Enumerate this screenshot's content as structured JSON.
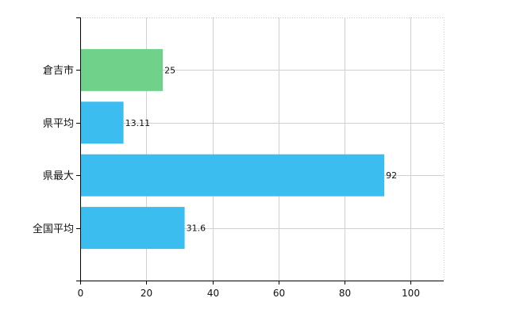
{
  "chart_data": {
    "type": "bar",
    "orientation": "horizontal",
    "categories": [
      "倉吉市",
      "県平均",
      "県最大",
      "全国平均"
    ],
    "values": [
      25,
      13.11,
      92,
      31.6
    ],
    "value_labels": [
      "25",
      "13.11",
      "92",
      "31.6"
    ],
    "bar_colors": [
      "#6fd18a",
      "#3bbdf0",
      "#3bbdf0",
      "#3bbdf0"
    ],
    "xlim": [
      0,
      110
    ],
    "x_ticks": [
      0,
      20,
      40,
      60,
      80,
      100
    ],
    "grid": true,
    "legend": "none",
    "title": "",
    "xlabel": "",
    "ylabel": ""
  }
}
